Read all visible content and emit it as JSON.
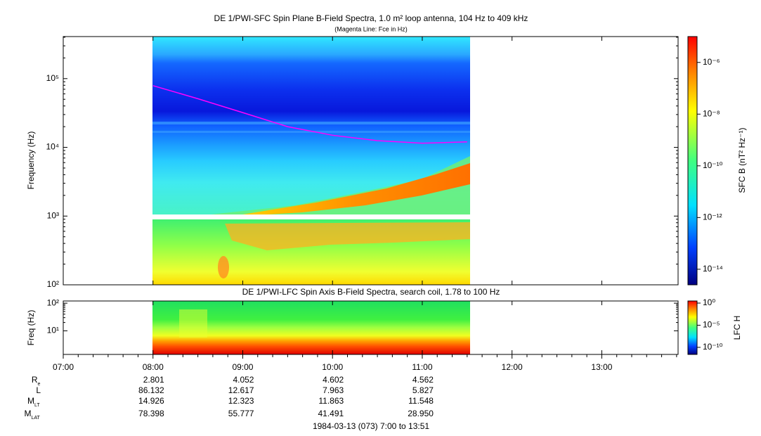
{
  "chart_data": [
    {
      "type": "spectrogram",
      "title": "DE 1/PWI-SFC  Spin Plane B-Field Spectra, 1.0 m² loop antenna, 104 Hz to 409 kHz",
      "subtitle": "(Magenta Line: Fce in Hz)",
      "ylabel": "Frequency (Hz)",
      "log_y": true,
      "xlim": [
        7,
        13.85
      ],
      "ylim": [
        100,
        409000
      ],
      "yticks": [
        {
          "value": 100,
          "label": "10²"
        },
        {
          "value": 1000,
          "label": "10³"
        },
        {
          "value": 10000,
          "label": "10⁴"
        },
        {
          "value": 100000,
          "label": "10⁵"
        }
      ],
      "x": [
        8,
        8.5,
        9,
        9.5,
        10,
        10.5,
        11,
        11.5
      ],
      "series": [
        {
          "color": "#ff00ff",
          "values": [
            79000,
            51000,
            32000,
            20000,
            15000,
            12500,
            11500,
            12000
          ]
        }
      ],
      "colorbar": {
        "label": "SFC B (nT² Hz⁻¹)",
        "zlim": [
          2.5e-15,
          1e-05
        ],
        "ticks": [
          {
            "value": 1e-06,
            "label": "10⁻⁶"
          },
          {
            "value": 1e-08,
            "label": "10⁻⁸"
          },
          {
            "value": 1e-10,
            "label": "10⁻¹⁰"
          },
          {
            "value": 1e-12,
            "label": "10⁻¹²"
          },
          {
            "value": 1e-14,
            "label": "10⁻¹⁴"
          }
        ]
      }
    },
    {
      "type": "spectrogram",
      "title": "DE 1/PWI-LFC  Spin Axis B-Field Spectra, search coil, 1.78 to 100 Hz",
      "ylabel": "Freq (Hz)",
      "log_y": true,
      "xlim": [
        7,
        13.85
      ],
      "ylim": [
        1.4,
        120
      ],
      "yticks": [
        {
          "value": 10,
          "label": "10¹"
        },
        {
          "value": 100,
          "label": "10²"
        }
      ],
      "xticks": [
        {
          "value": 7,
          "label": "07:00"
        },
        {
          "value": 8,
          "label": "08:00"
        },
        {
          "value": 9,
          "label": "09:00"
        },
        {
          "value": 10,
          "label": "10:00"
        },
        {
          "value": 11,
          "label": "11:00"
        },
        {
          "value": 12,
          "label": "12:00"
        },
        {
          "value": 13,
          "label": "13:00"
        }
      ],
      "colorbar": {
        "label": "LFC H",
        "zlim": [
          2.5e-12,
          3
        ],
        "ticks": [
          {
            "value": 1,
            "label": "10⁰"
          },
          {
            "value": 1e-05,
            "label": "10⁻⁵"
          },
          {
            "value": 1e-10,
            "label": "10⁻¹⁰"
          }
        ]
      }
    }
  ],
  "ephemeris": {
    "rows": [
      {
        "label": "R",
        "sub": "e",
        "values": [
          "2.801",
          "4.052",
          "4.602",
          "4.562"
        ]
      },
      {
        "label": "L",
        "values": [
          "86.132",
          "12.617",
          "7.963",
          "5.827"
        ]
      },
      {
        "label": "M",
        "sub": "LT",
        "values": [
          "14.926",
          "12.323",
          "11.863",
          "11.548"
        ]
      },
      {
        "label": "M",
        "sub": "LAT",
        "values": [
          "78.398",
          "55.777",
          "41.491",
          "28.950"
        ]
      }
    ]
  },
  "footer": "1984-03-13 (073) 7:00 to 13:51"
}
